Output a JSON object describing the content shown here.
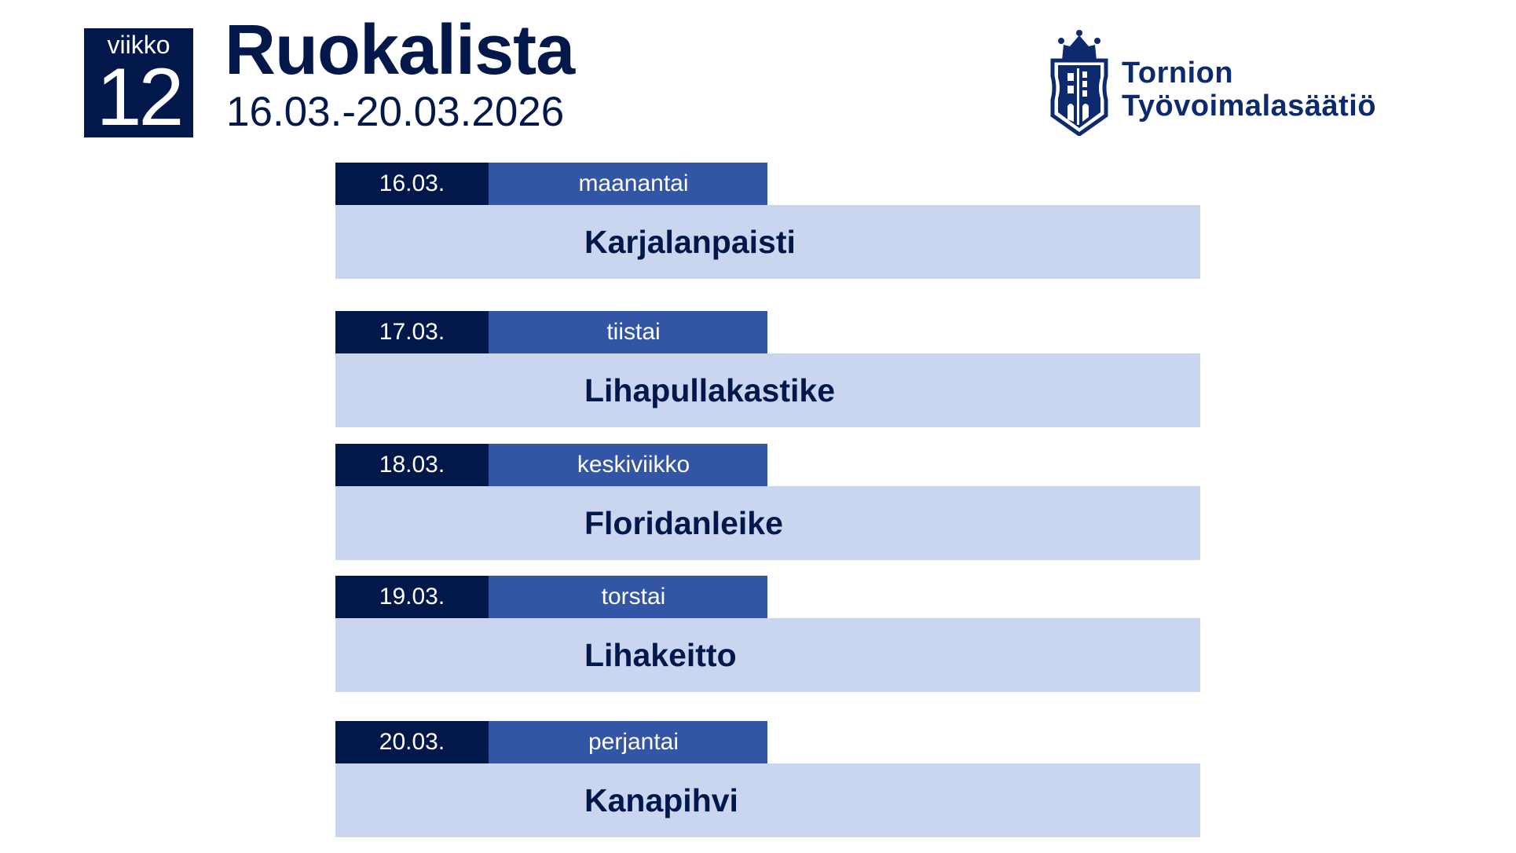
{
  "header": {
    "week_label": "viikko",
    "week_number": "12",
    "title": "Ruokalista",
    "date_range": "16.03.-20.03.2026"
  },
  "logo": {
    "line1": "Tornion",
    "line2": "Työvoimalasäätiö"
  },
  "colors": {
    "navy": "#03184a",
    "blue": "#3355a5",
    "light": "#cad5ef"
  },
  "days": [
    {
      "date": "16.03.",
      "weekday": "maanantai",
      "dish": "Karjalanpaisti"
    },
    {
      "date": "17.03.",
      "weekday": "tiistai",
      "dish": "Lihapullakastike"
    },
    {
      "date": "18.03.",
      "weekday": "keskiviikko",
      "dish": "Floridanleike"
    },
    {
      "date": "19.03.",
      "weekday": "torstai",
      "dish": "Lihakeitto"
    },
    {
      "date": "20.03.",
      "weekday": "perjantai",
      "dish": "Kanapihvi"
    }
  ]
}
